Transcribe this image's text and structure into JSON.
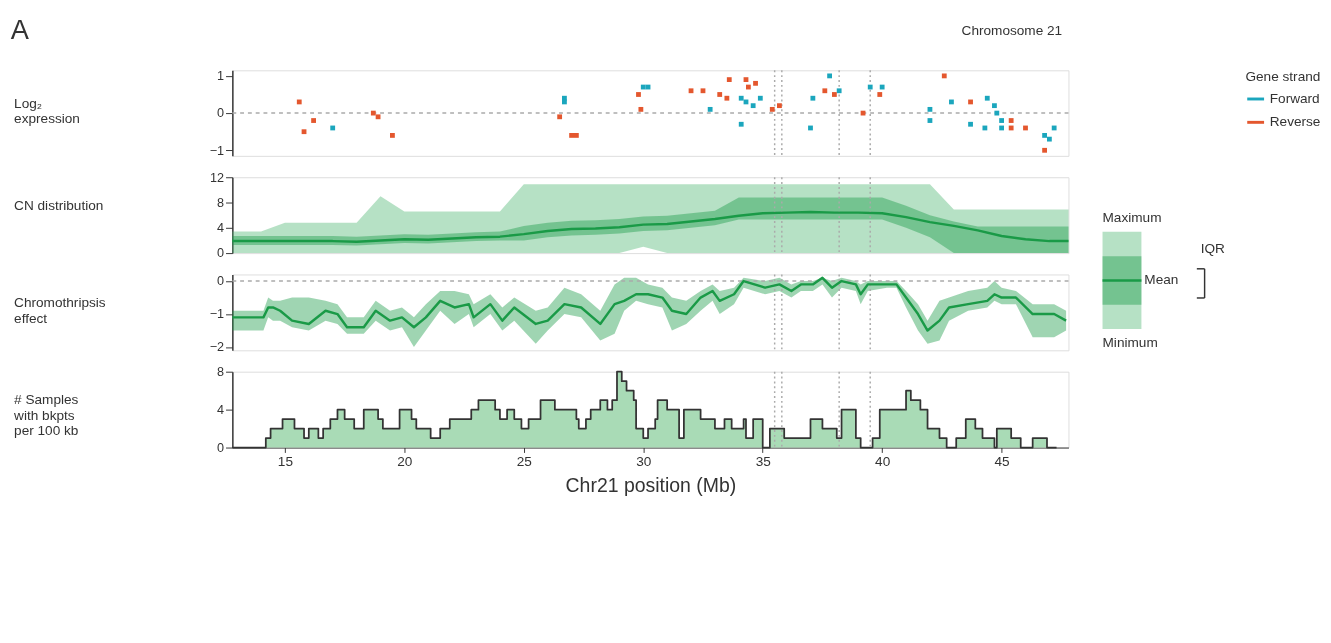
{
  "chart_data": [
    {
      "type": "scatter",
      "ylabel": "Log₂\nexpression",
      "legend_title": "Gene strand",
      "legend": "right",
      "marker": "square",
      "xlim": [
        12.8,
        47.8
      ],
      "ylim": [
        -1.15,
        1.15
      ],
      "yticks": [
        -1,
        0,
        1
      ],
      "tick_labels": "y",
      "annotations": [
        "A",
        "Chromosome 21"
      ],
      "ref_lines": [
        {
          "axis": "y",
          "value": 0,
          "color": "#aaaaaa",
          "line_style": "dashed"
        },
        {
          "axis": "x",
          "value": 35.5,
          "color": "#aaaaaa",
          "line_style": "dotted"
        },
        {
          "axis": "x",
          "value": 35.8,
          "color": "#aaaaaa",
          "line_style": "dotted"
        },
        {
          "axis": "x",
          "value": 38.2,
          "color": "#aaaaaa",
          "line_style": "dotted"
        },
        {
          "axis": "x",
          "value": 39.5,
          "color": "#aaaaaa",
          "line_style": "dotted"
        }
      ],
      "series": [
        {
          "name": "Forward",
          "color": "#1ba6bd",
          "x": [
            17.0,
            26.7,
            26.7,
            30.0,
            30.2,
            32.8,
            34.1,
            34.1,
            34.3,
            34.6,
            34.9,
            37.0,
            37.1,
            37.8,
            38.2,
            39.5,
            40.0,
            42.0,
            42.0,
            42.9,
            43.7,
            44.3,
            44.4,
            44.7,
            44.8,
            45.0,
            45.0,
            46.8,
            47.0,
            47.2
          ],
          "values": [
            -0.4,
            0.4,
            0.3,
            0.7,
            0.7,
            0.1,
            -0.3,
            0.4,
            0.3,
            0.2,
            0.4,
            -0.4,
            0.4,
            1.0,
            0.6,
            0.7,
            0.7,
            0.1,
            -0.2,
            0.3,
            -0.3,
            -0.4,
            0.4,
            0.2,
            0.0,
            -0.2,
            -0.4,
            -0.6,
            -0.7,
            -0.4
          ]
        },
        {
          "name": "Reverse",
          "color": "#e4572e",
          "x": [
            15.6,
            15.8,
            16.2,
            18.7,
            18.9,
            19.5,
            26.5,
            27.0,
            27.2,
            29.8,
            29.9,
            32.0,
            32.5,
            33.2,
            33.5,
            33.6,
            34.3,
            34.4,
            34.7,
            35.4,
            35.7,
            37.6,
            38.0,
            39.2,
            39.9,
            42.6,
            43.7,
            45.4,
            45.4,
            46.0,
            46.8
          ],
          "values": [
            0.3,
            -0.5,
            -0.2,
            0.0,
            -0.1,
            -0.6,
            -0.1,
            -0.6,
            -0.6,
            0.5,
            0.1,
            0.6,
            0.6,
            0.5,
            0.4,
            0.9,
            0.9,
            0.7,
            0.8,
            0.1,
            0.2,
            0.6,
            0.5,
            0.0,
            0.5,
            1.0,
            0.3,
            -0.2,
            -0.4,
            -0.4,
            -1.0
          ]
        }
      ]
    },
    {
      "type": "line",
      "ylabel": "CN distribution",
      "legend": "right",
      "xlim": [
        12.8,
        47.8
      ],
      "ylim": [
        0,
        12
      ],
      "yticks": [
        0,
        4,
        8,
        12
      ],
      "tick_labels": "y",
      "annotations": [
        "Maximum",
        "Minimum",
        "IQR"
      ],
      "ref_lines": [
        {
          "axis": "x",
          "value": 35.5,
          "color": "#aaaaaa",
          "line_style": "dotted"
        },
        {
          "axis": "x",
          "value": 35.8,
          "color": "#aaaaaa",
          "line_style": "dotted"
        },
        {
          "axis": "x",
          "value": 38.2,
          "color": "#aaaaaa",
          "line_style": "dotted"
        },
        {
          "axis": "x",
          "value": 39.5,
          "color": "#aaaaaa",
          "line_style": "dotted"
        }
      ],
      "series": [
        {
          "type": "line",
          "color": "#52b874",
          "x": [
            12.8,
            14,
            15,
            16,
            17,
            18,
            19,
            20,
            21,
            22,
            23,
            24,
            25,
            26,
            27,
            28,
            29,
            30,
            31,
            32,
            33,
            34,
            35,
            36,
            37,
            38,
            39,
            40,
            41,
            42,
            43,
            44,
            45,
            46,
            47,
            47.8
          ],
          "values": [
            null,
            null,
            null,
            null,
            null,
            null,
            null,
            null,
            null,
            null,
            null,
            null,
            null,
            null,
            null,
            null,
            null,
            null,
            null,
            null,
            null,
            null,
            null,
            null,
            null,
            null,
            null,
            null,
            null,
            null,
            null,
            null,
            null,
            null,
            null,
            null
          ],
          "lower": [
            0,
            0,
            0,
            0,
            0,
            0,
            0,
            0,
            0,
            0,
            0,
            0,
            0,
            0,
            0,
            0,
            0,
            1.0,
            0,
            0,
            0,
            0,
            0,
            0,
            0,
            0,
            0,
            0,
            0,
            0,
            0,
            0,
            0,
            0,
            0,
            0
          ],
          "upper": [
            3.4,
            3.4,
            4.8,
            4.8,
            4.8,
            4.8,
            9.0,
            6.6,
            6.6,
            6.6,
            6.6,
            6.6,
            10.9,
            10.9,
            10.9,
            10.9,
            10.9,
            10.9,
            10.9,
            10.9,
            10.9,
            10.9,
            10.9,
            10.9,
            10.9,
            10.9,
            10.9,
            10.9,
            10.9,
            10.9,
            6.9,
            6.9,
            6.9,
            6.9,
            6.9,
            6.9
          ]
        },
        {
          "name": "Mean",
          "type": "line",
          "color": "#1a9a47",
          "x": [
            12.8,
            14,
            15,
            16,
            17,
            18,
            19,
            20,
            21,
            22,
            23,
            24,
            25,
            26,
            27,
            28,
            29,
            30,
            31,
            32,
            33,
            34,
            35,
            36,
            37,
            38,
            39,
            40,
            41,
            42,
            43,
            44,
            45,
            46,
            47,
            47.8
          ],
          "values": [
            1.9,
            1.9,
            1.9,
            1.9,
            1.9,
            1.8,
            2.0,
            2.2,
            2.1,
            2.3,
            2.5,
            2.6,
            3.0,
            3.5,
            3.8,
            3.9,
            4.1,
            4.5,
            4.6,
            5.0,
            5.4,
            5.9,
            6.3,
            6.4,
            6.5,
            6.4,
            6.4,
            6.3,
            5.7,
            4.9,
            4.3,
            3.6,
            2.7,
            2.2,
            1.9,
            1.9
          ],
          "upper": [
            2.7,
            2.7,
            2.7,
            2.7,
            2.7,
            2.6,
            2.8,
            3.0,
            2.9,
            3.1,
            3.3,
            3.4,
            4.3,
            4.8,
            5.1,
            5.2,
            5.4,
            5.8,
            5.9,
            6.3,
            6.7,
            8.8,
            8.8,
            8.8,
            8.8,
            8.8,
            8.8,
            8.8,
            7.5,
            6.0,
            5.0,
            4.2,
            4.2,
            4.2,
            4.2,
            4.2
          ],
          "lower": [
            1.3,
            1.3,
            1.3,
            1.3,
            1.3,
            1.2,
            1.4,
            1.6,
            1.5,
            1.7,
            1.9,
            2.0,
            2.0,
            2.5,
            2.8,
            2.9,
            3.1,
            3.5,
            3.6,
            4.0,
            4.4,
            5.3,
            5.3,
            5.3,
            5.3,
            5.3,
            5.3,
            5.3,
            4.0,
            2.5,
            0,
            0,
            0,
            0,
            0,
            0
          ]
        }
      ]
    },
    {
      "type": "line",
      "ylabel": "Chromothripsis\neffect",
      "xlim": [
        12.8,
        47.8
      ],
      "ylim": [
        -2.1,
        0.2
      ],
      "yticks": [
        -2,
        -1,
        0
      ],
      "tick_labels": "y",
      "ref_lines": [
        {
          "axis": "y",
          "value": 0,
          "color": "#aaaaaa",
          "line_style": "dashed"
        },
        {
          "axis": "x",
          "value": 35.5,
          "color": "#aaaaaa",
          "line_style": "dotted"
        },
        {
          "axis": "x",
          "value": 35.8,
          "color": "#aaaaaa",
          "line_style": "dotted"
        },
        {
          "axis": "x",
          "value": 38.2,
          "color": "#aaaaaa",
          "line_style": "dotted"
        },
        {
          "axis": "x",
          "value": 39.5,
          "color": "#aaaaaa",
          "line_style": "dotted"
        }
      ],
      "series": [
        {
          "color": "#1a9a47",
          "x": [
            12.8,
            14.1,
            14.3,
            14.5,
            14.8,
            15.3,
            16.0,
            16.7,
            17.2,
            17.6,
            18.3,
            18.8,
            19.4,
            19.9,
            20.4,
            20.9,
            21.5,
            22.1,
            22.7,
            22.9,
            23.6,
            24.1,
            24.6,
            25.5,
            26.0,
            26.7,
            27.4,
            28.2,
            28.8,
            29.2,
            29.7,
            30.2,
            30.8,
            31.2,
            31.8,
            32.4,
            32.9,
            33.2,
            33.8,
            34.2,
            35.1,
            35.7,
            36.2,
            36.6,
            37.1,
            37.5,
            37.9,
            38.3,
            38.9,
            39.1,
            39.4,
            40.2,
            40.6,
            41.0,
            41.5,
            41.9,
            42.4,
            42.8,
            43.6,
            44.4,
            44.7,
            45.0,
            45.6,
            46.3,
            47.2,
            47.7
          ],
          "values": [
            -1.1,
            -1.1,
            -0.8,
            -0.8,
            -0.9,
            -1.2,
            -1.3,
            -0.9,
            -1.0,
            -1.4,
            -1.4,
            -0.9,
            -1.2,
            -1.1,
            -1.4,
            -1.1,
            -0.6,
            -0.8,
            -0.7,
            -1.1,
            -0.7,
            -1.2,
            -0.8,
            -1.3,
            -1.2,
            -0.7,
            -0.8,
            -1.3,
            -0.7,
            -0.6,
            -0.4,
            -0.4,
            -0.5,
            -0.9,
            -1.0,
            -0.5,
            -0.3,
            -0.6,
            -0.4,
            0.0,
            -0.2,
            -0.1,
            -0.3,
            -0.1,
            -0.1,
            0.1,
            -0.2,
            0.0,
            -0.1,
            -0.4,
            -0.1,
            -0.1,
            -0.1,
            -0.5,
            -1.0,
            -1.5,
            -1.2,
            -0.8,
            -0.7,
            -0.6,
            -0.4,
            -0.5,
            -0.5,
            -1.0,
            -1.0,
            -1.2
          ],
          "upper": [
            -0.9,
            -0.9,
            -0.5,
            -0.6,
            -0.6,
            -0.5,
            -0.5,
            -0.6,
            -0.7,
            -1.1,
            -1.1,
            -0.6,
            -0.9,
            -0.8,
            -1.1,
            -0.7,
            -0.3,
            -0.3,
            -0.4,
            -0.7,
            -0.4,
            -0.8,
            -0.5,
            -0.9,
            -0.8,
            -0.2,
            -0.4,
            -0.9,
            -0.1,
            0.1,
            0.1,
            -0.1,
            -0.2,
            -0.5,
            -0.6,
            -0.3,
            -0.1,
            -0.3,
            -0.2,
            0.1,
            0.0,
            0.1,
            -0.1,
            0.0,
            0.0,
            0.1,
            0.0,
            0.1,
            0.0,
            -0.1,
            0.0,
            0.0,
            0.0,
            -0.3,
            -0.7,
            -1.2,
            -0.6,
            -0.5,
            -0.3,
            -0.2,
            0.0,
            -0.2,
            -0.3,
            -0.7,
            -0.7,
            -0.9
          ],
          "lower": [
            -1.5,
            -1.5,
            -1.1,
            -1.2,
            -1.2,
            -1.4,
            -1.5,
            -1.2,
            -1.3,
            -1.6,
            -1.6,
            -1.2,
            -1.5,
            -1.4,
            -2.0,
            -1.5,
            -0.9,
            -1.3,
            -1.0,
            -1.4,
            -1.0,
            -1.5,
            -1.2,
            -1.9,
            -1.5,
            -1.0,
            -1.1,
            -1.8,
            -1.6,
            -0.9,
            -0.6,
            -0.7,
            -0.8,
            -1.5,
            -1.3,
            -0.9,
            -0.6,
            -1.0,
            -0.7,
            -0.2,
            -0.4,
            -0.3,
            -0.5,
            -0.3,
            -0.3,
            -0.1,
            -0.5,
            -0.2,
            -0.3,
            -0.7,
            -0.3,
            -0.2,
            -0.2,
            -0.8,
            -1.5,
            -1.9,
            -1.8,
            -1.2,
            -0.9,
            -0.8,
            -0.6,
            -0.7,
            -0.7,
            -1.7,
            -1.7,
            -1.5
          ]
        }
      ]
    },
    {
      "type": "line",
      "ylabel": "# Samples\nwith bkpts\nper 100 kb",
      "xlabel": "Chr21 position (Mb)",
      "xlim": [
        12.8,
        47.8
      ],
      "xticks": [
        15,
        20,
        25,
        30,
        35,
        40,
        45
      ],
      "ylim": [
        0,
        8
      ],
      "yticks": [
        0,
        4,
        8
      ],
      "ref_lines": [
        {
          "axis": "x",
          "value": 35.5,
          "color": "#aaaaaa",
          "line_style": "dotted"
        },
        {
          "axis": "x",
          "value": 35.8,
          "color": "#aaaaaa",
          "line_style": "dotted"
        },
        {
          "axis": "x",
          "value": 38.2,
          "color": "#aaaaaa",
          "line_style": "dotted"
        },
        {
          "axis": "x",
          "value": 39.5,
          "color": "#aaaaaa",
          "line_style": "dotted"
        }
      ],
      "x": [
        12.8,
        14.2,
        14.2,
        14.4,
        14.4,
        14.9,
        14.9,
        15.4,
        15.4,
        15.8,
        15.8,
        16.0,
        16.0,
        16.4,
        16.4,
        16.6,
        16.6,
        16.9,
        16.9,
        17.2,
        17.2,
        17.5,
        17.5,
        17.9,
        17.9,
        18.3,
        18.3,
        18.9,
        18.9,
        19.1,
        19.1,
        19.8,
        19.8,
        20.3,
        20.3,
        20.5,
        20.5,
        21.1,
        21.1,
        21.5,
        21.5,
        21.9,
        21.9,
        22.8,
        22.8,
        23.1,
        23.1,
        23.8,
        23.8,
        24.0,
        24.0,
        24.3,
        24.3,
        24.6,
        24.6,
        24.9,
        24.9,
        25.2,
        25.2,
        25.7,
        25.7,
        26.3,
        26.3,
        27.2,
        27.2,
        27.3,
        27.3,
        27.6,
        27.6,
        27.8,
        27.8,
        28.2,
        28.2,
        28.5,
        28.5,
        28.7,
        28.7,
        28.9,
        28.9,
        29.1,
        29.1,
        29.3,
        29.3,
        29.6,
        29.6,
        29.7,
        29.7,
        30.0,
        30.0,
        30.2,
        30.2,
        30.5,
        30.5,
        30.6,
        30.6,
        31.0,
        31.0,
        31.5,
        31.5,
        31.7,
        31.7,
        32.4,
        32.4,
        33.0,
        33.0,
        33.4,
        33.4,
        33.7,
        33.7,
        34.2,
        34.2,
        34.3,
        34.3,
        34.6,
        34.6,
        35.0,
        35.0,
        35.3,
        35.3,
        35.9,
        35.9,
        37.0,
        37.0,
        37.5,
        37.5,
        38.1,
        38.1,
        38.3,
        38.3,
        38.9,
        38.9,
        39.1,
        39.1,
        39.6,
        39.6,
        39.9,
        39.9,
        41.0,
        41.0,
        41.2,
        41.2,
        41.6,
        41.6,
        41.9,
        41.9,
        42.4,
        42.4,
        42.7,
        42.7,
        43.1,
        43.1,
        43.5,
        43.5,
        43.9,
        43.9,
        44.2,
        44.2,
        44.7,
        44.7,
        44.8,
        44.8,
        45.4,
        45.4,
        45.8,
        45.8,
        46.3,
        46.3,
        46.9,
        46.9,
        47.3
      ],
      "series": [
        {
          "type": "area",
          "color": "#a9dbb6",
          "values": [
            0,
            0,
            1,
            1,
            2,
            2,
            3,
            3,
            2,
            2,
            1,
            1,
            2,
            2,
            1,
            1,
            2,
            2,
            3,
            3,
            4,
            4,
            3,
            3,
            2,
            2,
            4,
            4,
            3,
            3,
            2,
            2,
            4,
            4,
            3,
            3,
            2,
            2,
            1,
            1,
            2,
            2,
            3,
            3,
            4,
            4,
            5,
            5,
            4,
            4,
            3,
            3,
            4,
            4,
            3,
            3,
            2,
            2,
            3,
            3,
            5,
            5,
            4,
            4,
            3,
            3,
            2,
            2,
            3,
            3,
            4,
            4,
            5,
            5,
            4,
            4,
            5,
            5,
            8,
            8,
            7,
            7,
            6,
            6,
            5,
            5,
            2,
            2,
            1,
            1,
            2,
            2,
            3,
            3,
            5,
            5,
            4,
            4,
            1,
            1,
            4,
            4,
            3,
            3,
            2,
            2,
            3,
            3,
            2,
            2,
            3,
            3,
            1,
            1,
            3,
            3,
            0,
            0,
            2,
            2,
            1,
            1,
            3,
            3,
            2,
            2,
            1,
            1,
            4,
            4,
            1,
            1,
            0,
            0,
            1,
            1,
            4,
            4,
            6,
            6,
            5,
            5,
            4,
            4,
            2,
            2,
            1,
            1,
            0,
            0,
            1,
            1,
            3,
            3,
            2,
            2,
            1,
            1,
            0,
            0,
            2,
            2,
            1,
            1,
            0,
            0,
            1,
            1,
            0,
            0
          ]
        }
      ]
    }
  ]
}
